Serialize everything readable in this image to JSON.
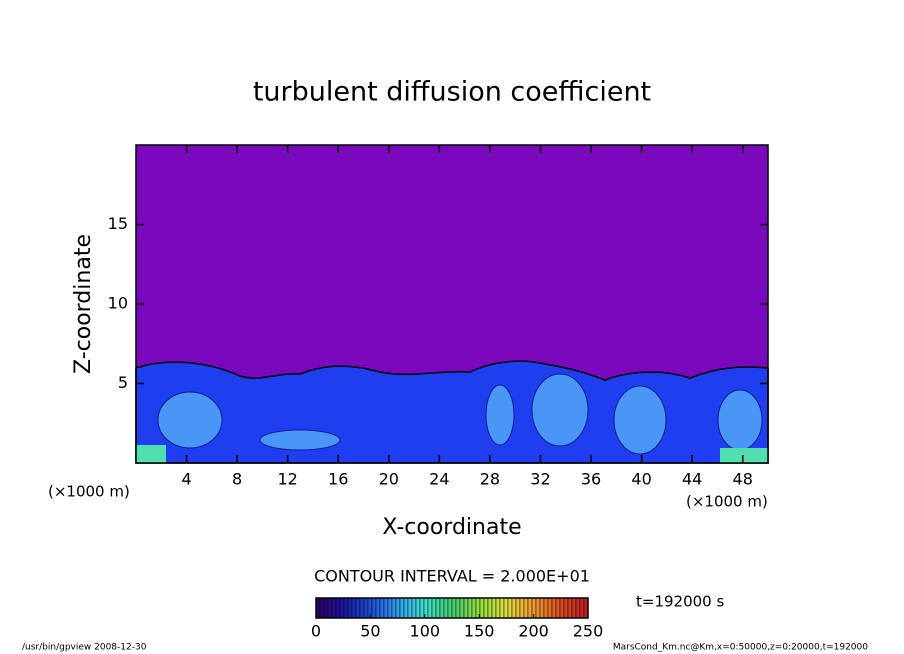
{
  "chart_data": {
    "type": "contour",
    "title": "turbulent diffusion coefficient",
    "x_label": "X-coordinate",
    "y_label": "Z-coordinate",
    "x_unit": "(×1000 m)",
    "y_unit": "(×1000 m)",
    "xlim": [
      0,
      50
    ],
    "ylim": [
      0,
      20
    ],
    "xticks": [
      4,
      8,
      12,
      16,
      20,
      24,
      28,
      32,
      36,
      40,
      44,
      48
    ],
    "yticks": [
      5,
      10,
      15
    ],
    "contour_interval": "CONTOUR INTERVAL = 2.000E+01",
    "time_label": "t=192000 s",
    "colorbar": {
      "lim": [
        0,
        250
      ],
      "ticks": [
        0,
        50,
        100,
        150,
        200,
        250
      ],
      "colors": [
        "#2a0070",
        "#1a1aa0",
        "#2050e0",
        "#30a0f0",
        "#40e0d0",
        "#40d070",
        "#90e040",
        "#e0e040",
        "#f0a030",
        "#e05020",
        "#c02020"
      ]
    },
    "footer_left": "/usr/bin/gpview   2008-12-30",
    "footer_right": "MarsCond_Km.nc@Km,x=0:50000,z=0:20000,t=192000"
  }
}
